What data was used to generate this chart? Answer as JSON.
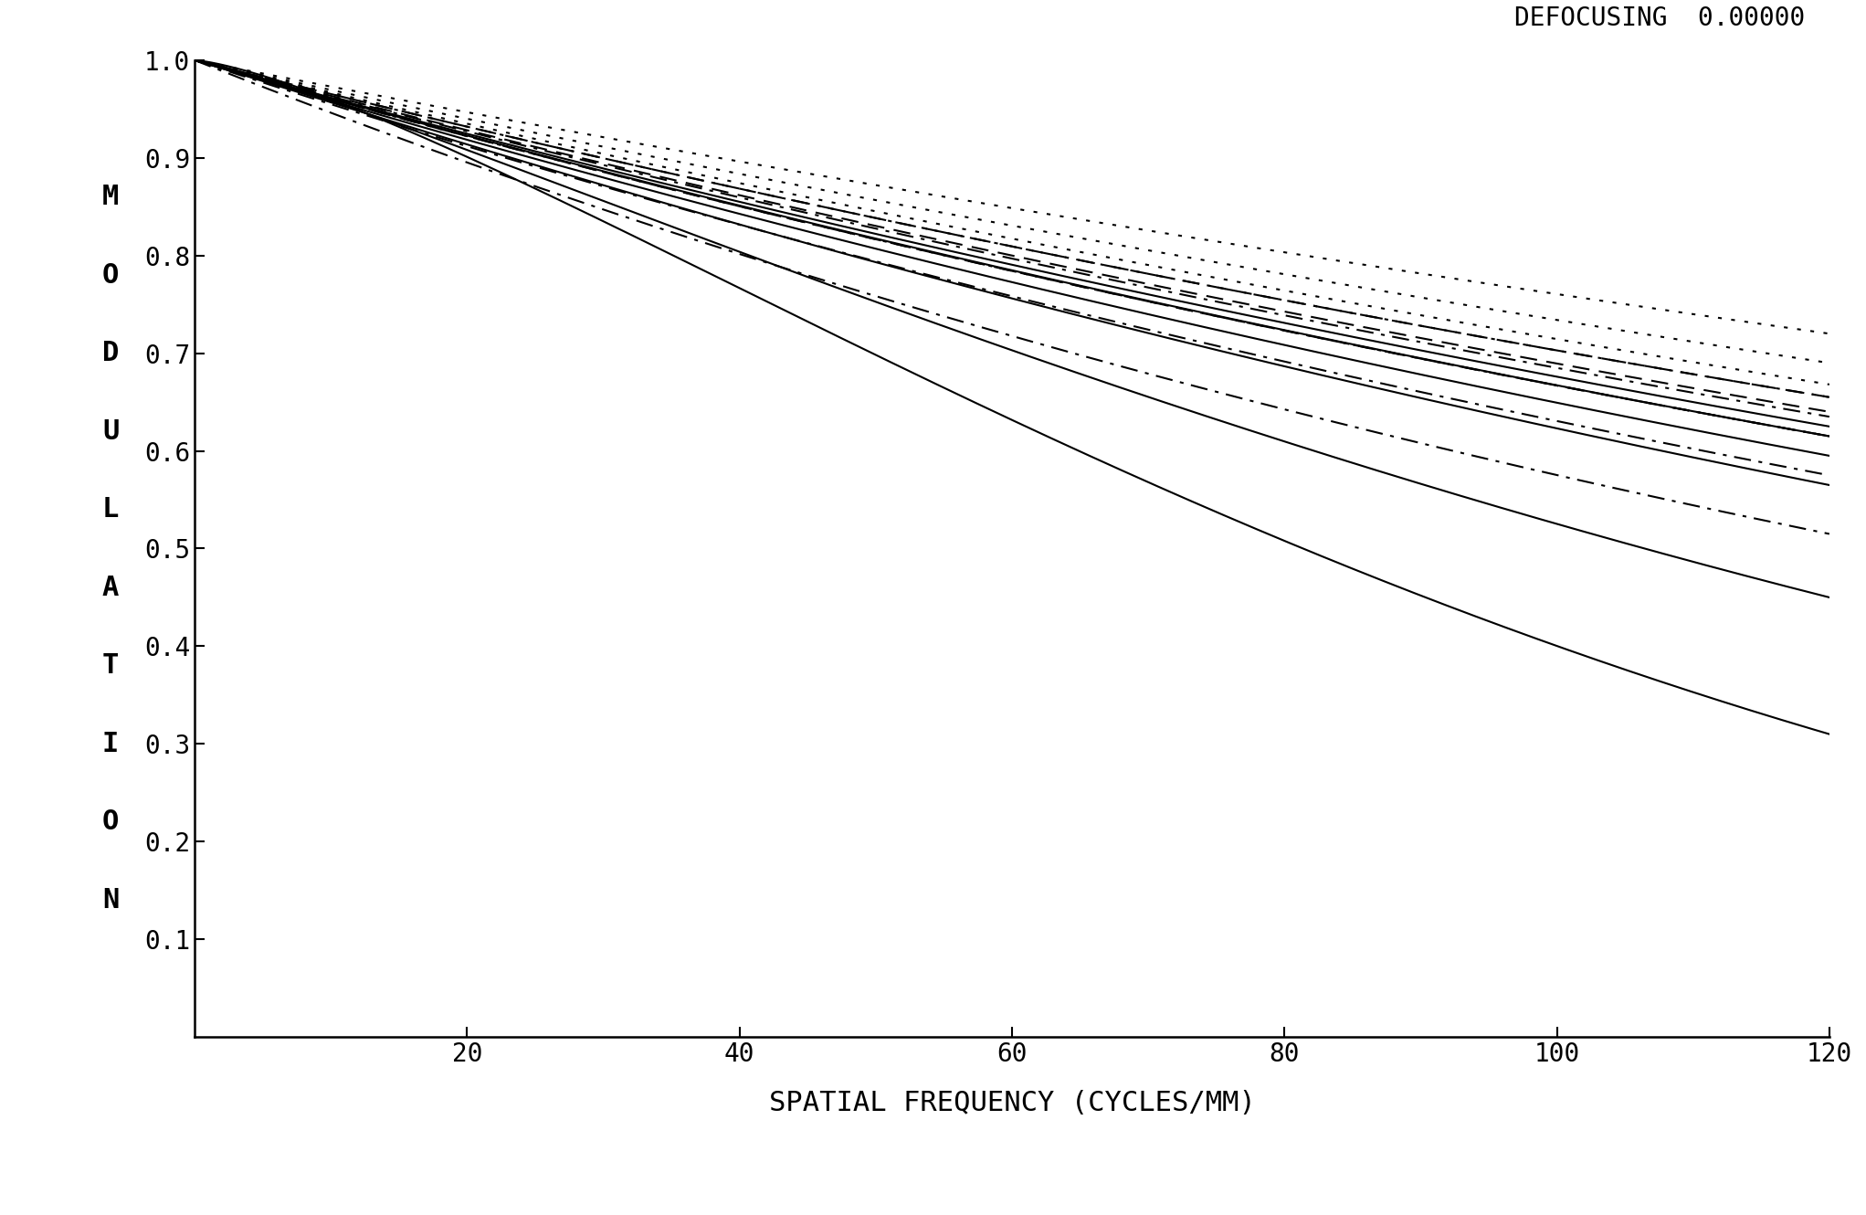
{
  "title_text": "DEFOCUSING  0.00000",
  "xlabel": "SPATIAL FREQUENCY (CYCLES/MM)",
  "ylabel_chars": [
    "M",
    "O",
    "D",
    "U",
    "L",
    "A",
    "T",
    "I",
    "O",
    "N"
  ],
  "xlim": [
    0,
    120
  ],
  "ylim": [
    0.0,
    1.0
  ],
  "xticks": [
    20,
    40,
    60,
    80,
    100,
    120
  ],
  "yticks": [
    0.1,
    0.2,
    0.3,
    0.4,
    0.5,
    0.6,
    0.7,
    0.8,
    0.9,
    1.0
  ],
  "background_color": "#ffffff",
  "line_color": "#000000",
  "curves": [
    {
      "style": "solid",
      "ep": 0.31,
      "pw": 1.35,
      "lw": 1.5
    },
    {
      "style": "solid",
      "ep": 0.45,
      "pw": 1.18,
      "lw": 1.5
    },
    {
      "style": "solid",
      "ep": 0.565,
      "pw": 1.03,
      "lw": 1.5
    },
    {
      "style": "solid",
      "ep": 0.595,
      "pw": 1.01,
      "lw": 1.5
    },
    {
      "style": "solid",
      "ep": 0.615,
      "pw": 1.005,
      "lw": 1.5
    },
    {
      "style": "solid",
      "ep": 0.625,
      "pw": 1.0,
      "lw": 1.5
    },
    {
      "style": "dashdot",
      "ep": 0.515,
      "pw": 1.0,
      "lw": 1.5
    },
    {
      "style": "dashdot",
      "ep": 0.575,
      "pw": 1.0,
      "lw": 1.5
    },
    {
      "style": "dashdot",
      "ep": 0.615,
      "pw": 1.0,
      "lw": 1.5
    },
    {
      "style": "dashdot",
      "ep": 0.635,
      "pw": 1.0,
      "lw": 1.5
    },
    {
      "style": "dashdot",
      "ep": 0.655,
      "pw": 1.0,
      "lw": 1.5
    },
    {
      "style": "dashed",
      "ep": 0.615,
      "pw": 1.0,
      "lw": 1.5
    },
    {
      "style": "dashed",
      "ep": 0.64,
      "pw": 1.0,
      "lw": 1.5
    },
    {
      "style": "dashed",
      "ep": 0.655,
      "pw": 1.0,
      "lw": 1.5
    },
    {
      "style": "dotted",
      "ep": 0.668,
      "pw": 1.0,
      "lw": 1.5
    },
    {
      "style": "dotted",
      "ep": 0.69,
      "pw": 1.0,
      "lw": 1.5
    },
    {
      "style": "dotted",
      "ep": 0.72,
      "pw": 1.0,
      "lw": 1.5
    }
  ],
  "ylabel_x_fig": 0.028,
  "ylabel_y_center_fig": 0.5,
  "ylabel_fontsize": 22,
  "tick_fontsize": 20,
  "xlabel_fontsize": 22,
  "title_fontsize": 20
}
